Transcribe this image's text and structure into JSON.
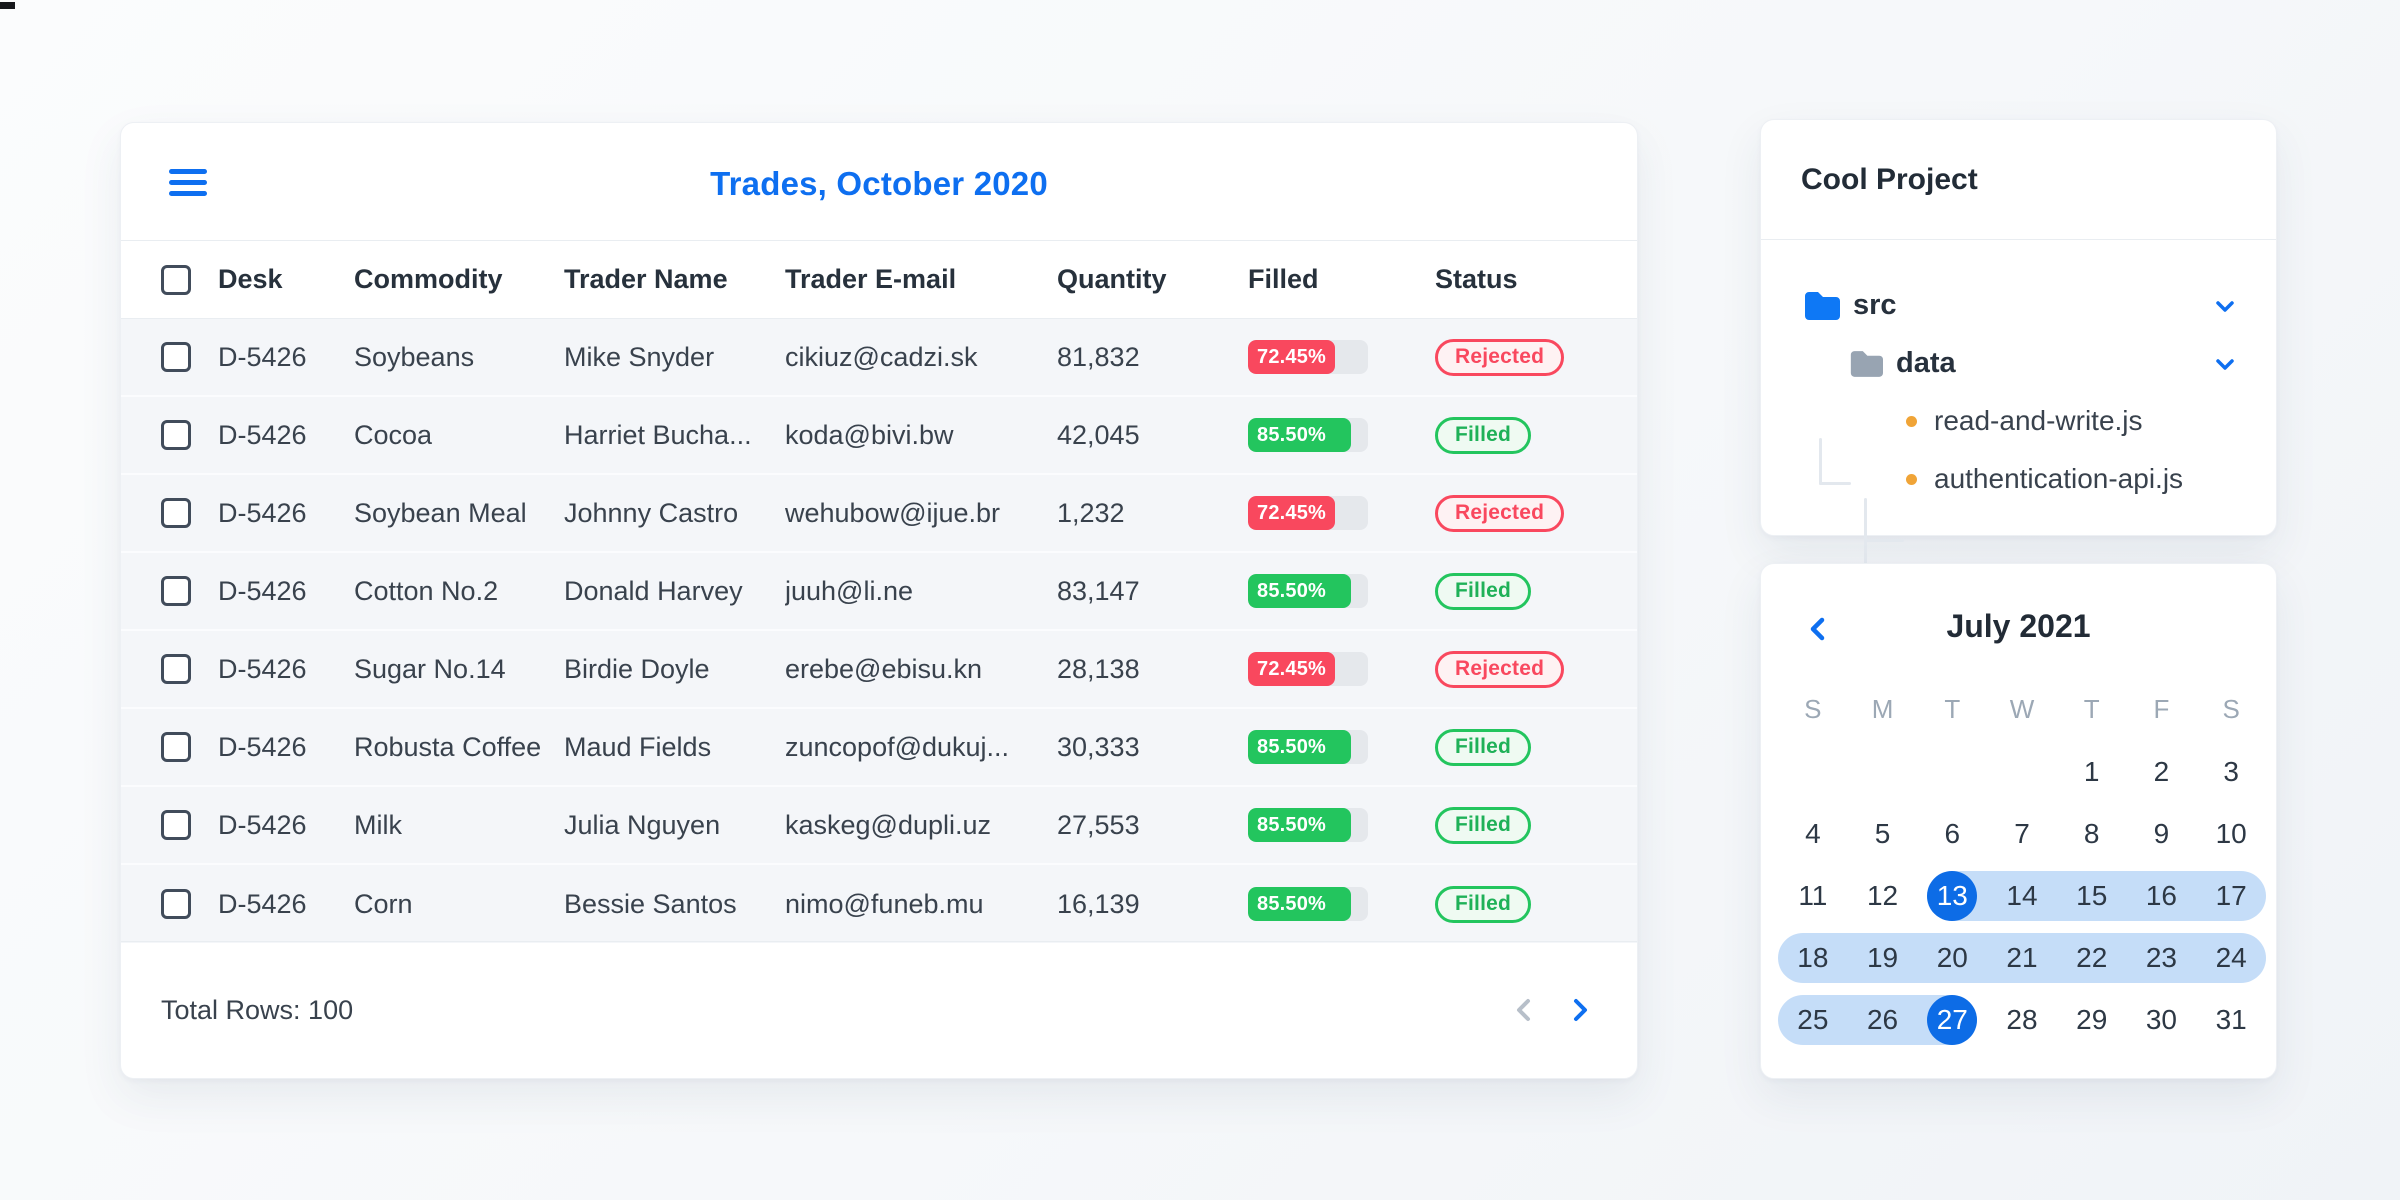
{
  "trades_card": {
    "title": "Trades, October 2020",
    "columns": [
      "Desk",
      "Commodity",
      "Trader Name",
      "Trader E-mail",
      "Quantity",
      "Filled",
      "Status"
    ],
    "rows": [
      {
        "desk": "D-5426",
        "commodity": "Soybeans",
        "trader": "Mike Snyder",
        "email": "cikiuz@cadzi.sk",
        "quantity": "81,832",
        "filled_percent": "72.45%",
        "filled_color": "red",
        "status": "Rejected",
        "status_variant": "rejected"
      },
      {
        "desk": "D-5426",
        "commodity": "Cocoa",
        "trader": "Harriet Bucha...",
        "email": "koda@bivi.bw",
        "quantity": "42,045",
        "filled_percent": "85.50%",
        "filled_color": "green",
        "status": "Filled",
        "status_variant": "filled"
      },
      {
        "desk": "D-5426",
        "commodity": "Soybean Meal",
        "trader": "Johnny Castro",
        "email": "wehubow@ijue.br",
        "quantity": "1,232",
        "filled_percent": "72.45%",
        "filled_color": "red",
        "status": "Rejected",
        "status_variant": "rejected"
      },
      {
        "desk": "D-5426",
        "commodity": "Cotton No.2",
        "trader": "Donald Harvey",
        "email": "juuh@li.ne",
        "quantity": "83,147",
        "filled_percent": "85.50%",
        "filled_color": "green",
        "status": "Filled",
        "status_variant": "filled"
      },
      {
        "desk": "D-5426",
        "commodity": "Sugar No.14",
        "trader": "Birdie Doyle",
        "email": "erebe@ebisu.kn",
        "quantity": "28,138",
        "filled_percent": "72.45%",
        "filled_color": "red",
        "status": "Rejected",
        "status_variant": "rejected"
      },
      {
        "desk": "D-5426",
        "commodity": "Robusta Coffee",
        "trader": "Maud Fields",
        "email": "zuncopof@dukuj...",
        "quantity": "30,333",
        "filled_percent": "85.50%",
        "filled_color": "green",
        "status": "Filled",
        "status_variant": "filled"
      },
      {
        "desk": "D-5426",
        "commodity": "Milk",
        "trader": "Julia Nguyen",
        "email": "kaskeg@dupli.uz",
        "quantity": "27,553",
        "filled_percent": "85.50%",
        "filled_color": "green",
        "status": "Filled",
        "status_variant": "filled"
      },
      {
        "desk": "D-5426",
        "commodity": "Corn",
        "trader": "Bessie Santos",
        "email": "nimo@funeb.mu",
        "quantity": "16,139",
        "filled_percent": "85.50%",
        "filled_color": "green",
        "status": "Filled",
        "status_variant": "filled"
      }
    ],
    "footer_label": "Total Rows: 100",
    "pagination": {
      "prev_enabled": false,
      "next_enabled": true
    }
  },
  "file_tree_card": {
    "title": "Cool Project",
    "items": [
      {
        "label": "src",
        "type": "folder",
        "color": "blue",
        "expanded": true
      },
      {
        "label": "data",
        "type": "folder",
        "color": "gray",
        "expanded": true
      },
      {
        "label": "read-and-write.js",
        "type": "file"
      },
      {
        "label": "authentication-api.js",
        "type": "file"
      }
    ]
  },
  "calendar_card": {
    "title": "July 2021",
    "weekdays": [
      "S",
      "M",
      "T",
      "W",
      "T",
      "F",
      "S"
    ],
    "selected_range": {
      "start": 13,
      "end": 27
    },
    "weeks": [
      [
        null,
        null,
        null,
        null,
        {
          "d": 1,
          "state": "normal"
        },
        {
          "d": 2,
          "state": "normal"
        },
        {
          "d": 3,
          "state": "normal"
        }
      ],
      [
        {
          "d": 4,
          "state": "normal"
        },
        {
          "d": 5,
          "state": "normal"
        },
        {
          "d": 6,
          "state": "normal"
        },
        {
          "d": 7,
          "state": "normal"
        },
        {
          "d": 8,
          "state": "normal"
        },
        {
          "d": 9,
          "state": "normal"
        },
        {
          "d": 10,
          "state": "normal"
        }
      ],
      [
        {
          "d": 11,
          "state": "normal"
        },
        {
          "d": 12,
          "state": "normal"
        },
        {
          "d": 13,
          "state": "selected"
        },
        {
          "d": 14,
          "state": "range"
        },
        {
          "d": 15,
          "state": "range"
        },
        {
          "d": 16,
          "state": "range"
        },
        {
          "d": 17,
          "state": "range"
        }
      ],
      [
        {
          "d": 18,
          "state": "range"
        },
        {
          "d": 19,
          "state": "range"
        },
        {
          "d": 20,
          "state": "range"
        },
        {
          "d": 21,
          "state": "range"
        },
        {
          "d": 22,
          "state": "range"
        },
        {
          "d": 23,
          "state": "range"
        },
        {
          "d": 24,
          "state": "range"
        }
      ],
      [
        {
          "d": 25,
          "state": "range"
        },
        {
          "d": 26,
          "state": "range"
        },
        {
          "d": 27,
          "state": "selected"
        },
        {
          "d": 28,
          "state": "normal"
        },
        {
          "d": 29,
          "state": "normal"
        },
        {
          "d": 30,
          "state": "normal"
        },
        {
          "d": 31,
          "state": "normal"
        }
      ]
    ]
  },
  "colors": {
    "accent_blue": "#0e6ff0",
    "calendar_selected": "#0d6ce6",
    "calendar_range_band": "#c5ddf8",
    "progress_red": "#f9485e",
    "progress_green": "#23c55e",
    "folder_gray": "#98a4b2",
    "file_dot_orange": "#f0a437"
  }
}
